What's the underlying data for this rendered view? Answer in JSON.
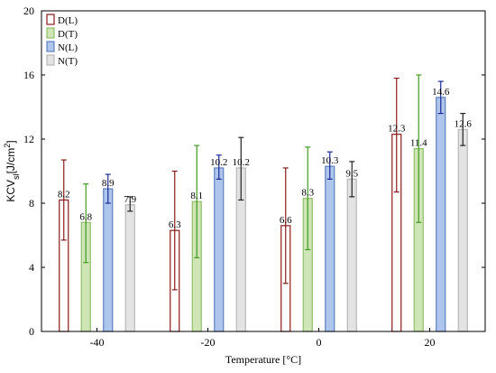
{
  "chart_data": {
    "type": "bar",
    "xlabel": "Temperature [°C]",
    "ylabel": "KCV",
    "ylabel_sub": "sl",
    "ylabel_unit": "[J/cm",
    "ylabel_sup": "2",
    "ylabel_end": "]",
    "ylim": [
      0,
      20
    ],
    "yticks": [
      "0",
      "4",
      "8",
      "12",
      "16",
      "20"
    ],
    "categories": [
      "-40",
      "-20",
      "0",
      "20"
    ],
    "grid": false,
    "legend_position": "top-left",
    "series": [
      {
        "name": "D(L)",
        "edge_color": "#8b1a1a",
        "fill_color": "#ffffff",
        "error_color": "#8b1a1a",
        "values": [
          8.2,
          6.3,
          6.6,
          12.3
        ],
        "labels": [
          "8.2",
          "6.3",
          "6.6",
          "12.3"
        ],
        "err_low": [
          5.7,
          2.6,
          3.0,
          8.7
        ],
        "err_high": [
          10.7,
          10.0,
          10.2,
          15.8
        ]
      },
      {
        "name": "D(T)",
        "edge_color": "#8fbf6a",
        "fill_color": "#cfe5b6",
        "error_color": "#3f9a1f",
        "values": [
          6.8,
          8.1,
          8.3,
          11.4
        ],
        "labels": [
          "6.8",
          "8.1",
          "8.3",
          "11.4"
        ],
        "err_low": [
          4.3,
          4.6,
          5.1,
          6.8
        ],
        "err_high": [
          9.2,
          11.6,
          11.5,
          16.0
        ]
      },
      {
        "name": "N(L)",
        "edge_color": "#5f7fbf",
        "fill_color": "#aec5ec",
        "error_color": "#1a2a9c",
        "values": [
          8.9,
          10.2,
          10.3,
          14.6
        ],
        "labels": [
          "8.9",
          "10.2",
          "10.3",
          "14.6"
        ],
        "err_low": [
          8.0,
          9.5,
          9.5,
          13.6
        ],
        "err_high": [
          9.8,
          11.0,
          11.2,
          15.6
        ]
      },
      {
        "name": "N(T)",
        "edge_color": "#b8b8b8",
        "fill_color": "#e3e3e3",
        "error_color": "#222222",
        "values": [
          7.9,
          10.2,
          9.5,
          12.6
        ],
        "labels": [
          "7.9",
          "10.2",
          "9.5",
          "12.6"
        ],
        "err_low": [
          7.5,
          8.2,
          8.4,
          11.6
        ],
        "err_high": [
          8.4,
          12.1,
          10.6,
          13.6
        ]
      }
    ]
  }
}
